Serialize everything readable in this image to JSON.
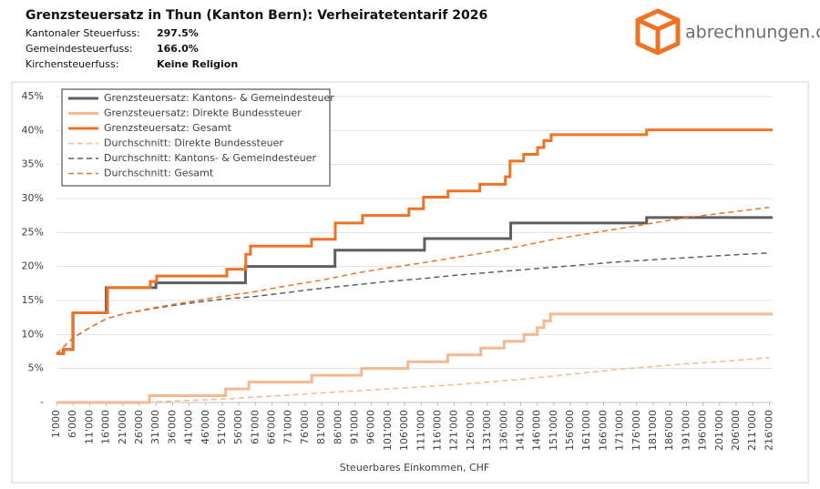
{
  "chart_data": {
    "type": "line",
    "title": "Grenzsteuersatz in Thun (Kanton Bern): Verheiratetentarif 2026",
    "info": [
      {
        "label": "Kantonaler Steuerfuss:",
        "value": "297.5%"
      },
      {
        "label": "Gemeindesteuerfuss:",
        "value": "166.0%"
      },
      {
        "label": "Kirchensteuerfuss:",
        "value": "Keine Religion"
      }
    ],
    "brand": "abrechnungen.ch",
    "x_label": "Steuerbares Einkommen, CHF",
    "xlim": [
      1000,
      217000
    ],
    "ylim": [
      0,
      45
    ],
    "grid": true,
    "legend": "top-left",
    "yticks": [
      {
        "value": 0,
        "label": "-"
      },
      {
        "value": 5,
        "label": "5%"
      },
      {
        "value": 10,
        "label": "10%"
      },
      {
        "value": 15,
        "label": "15%"
      },
      {
        "value": 20,
        "label": "20%"
      },
      {
        "value": 25,
        "label": "25%"
      },
      {
        "value": 30,
        "label": "30%"
      },
      {
        "value": 35,
        "label": "35%"
      },
      {
        "value": 40,
        "label": "40%"
      },
      {
        "value": 45,
        "label": "45%"
      }
    ],
    "xticks": [
      {
        "value": 1000,
        "label": "1'000"
      },
      {
        "value": 6000,
        "label": "6'000"
      },
      {
        "value": 11000,
        "label": "11'000"
      },
      {
        "value": 16000,
        "label": "16'000"
      },
      {
        "value": 21000,
        "label": "21'000"
      },
      {
        "value": 26000,
        "label": "26'000"
      },
      {
        "value": 31000,
        "label": "31'000"
      },
      {
        "value": 36000,
        "label": "36'000"
      },
      {
        "value": 41000,
        "label": "41'000"
      },
      {
        "value": 46000,
        "label": "46'000"
      },
      {
        "value": 51000,
        "label": "51'000"
      },
      {
        "value": 56000,
        "label": "56'000"
      },
      {
        "value": 61000,
        "label": "61'000"
      },
      {
        "value": 66000,
        "label": "66'000"
      },
      {
        "value": 71000,
        "label": "71'000"
      },
      {
        "value": 76000,
        "label": "76'000"
      },
      {
        "value": 81000,
        "label": "81'000"
      },
      {
        "value": 86000,
        "label": "86'000"
      },
      {
        "value": 91000,
        "label": "91'000"
      },
      {
        "value": 96000,
        "label": "96'000"
      },
      {
        "value": 101000,
        "label": "101'000"
      },
      {
        "value": 106000,
        "label": "106'000"
      },
      {
        "value": 111000,
        "label": "111'000"
      },
      {
        "value": 116000,
        "label": "116'000"
      },
      {
        "value": 121000,
        "label": "121'000"
      },
      {
        "value": 126000,
        "label": "126'000"
      },
      {
        "value": 131000,
        "label": "131'000"
      },
      {
        "value": 136000,
        "label": "136'000"
      },
      {
        "value": 141000,
        "label": "141'000"
      },
      {
        "value": 146000,
        "label": "146'000"
      },
      {
        "value": 151000,
        "label": "151'000"
      },
      {
        "value": 156000,
        "label": "156'000"
      },
      {
        "value": 161000,
        "label": "161'000"
      },
      {
        "value": 166000,
        "label": "166'000"
      },
      {
        "value": 171000,
        "label": "171'000"
      },
      {
        "value": 176000,
        "label": "176'000"
      },
      {
        "value": 181000,
        "label": "181'000"
      },
      {
        "value": 186000,
        "label": "186'000"
      },
      {
        "value": 191000,
        "label": "191'000"
      },
      {
        "value": 196000,
        "label": "196'000"
      },
      {
        "value": 201000,
        "label": "201'000"
      },
      {
        "value": 206000,
        "label": "206'000"
      },
      {
        "value": 211000,
        "label": "211'000"
      },
      {
        "value": 216000,
        "label": "216'000"
      }
    ],
    "series": [
      {
        "name": "Grenzsteuersatz: Kantons- & Gemeindesteuer",
        "color": "#5f5f5f",
        "dash": false,
        "step": true,
        "x": [
          1000,
          3000,
          6000,
          16000,
          31000,
          58000,
          85000,
          112000,
          138000,
          179000,
          217000
        ],
        "values": [
          7.2,
          7.8,
          13.2,
          16.9,
          17.6,
          20.0,
          22.4,
          24.1,
          26.4,
          27.2,
          27.2
        ]
      },
      {
        "name": "Grenzsteuersatz: Direkte Bundessteuer",
        "color": "#f7b890",
        "dash": false,
        "step": true,
        "x": [
          1000,
          29000,
          52000,
          59000,
          78000,
          93000,
          107000,
          119000,
          129000,
          136000,
          142000,
          146000,
          148000,
          150000,
          217000
        ],
        "values": [
          0,
          1,
          2,
          3,
          4,
          5,
          6,
          7,
          8,
          9,
          10,
          11,
          12,
          13,
          13
        ]
      },
      {
        "name": "Grenzsteuersatz: Gesamt",
        "color": "#ee7325",
        "dash": false,
        "step": true,
        "x": [
          1000,
          3200,
          5900,
          16400,
          29300,
          31200,
          52400,
          58100,
          59500,
          77900,
          85100,
          93300,
          107300,
          111700,
          119100,
          128700,
          136400,
          137800,
          141900,
          146100,
          148000,
          150200,
          179000,
          217000
        ],
        "values": [
          7.2,
          7.8,
          13.2,
          16.9,
          17.8,
          18.6,
          19.6,
          21.8,
          23.0,
          24.0,
          26.4,
          27.5,
          28.5,
          30.2,
          31.1,
          32.1,
          33.2,
          35.5,
          36.5,
          37.5,
          38.5,
          39.4,
          40.1,
          40.1
        ]
      },
      {
        "name": "Durchschnitt: Direkte Bundessteuer",
        "color": "#f7b890",
        "dash": true,
        "step": false,
        "x": [
          1000,
          29000,
          31000,
          41000,
          51000,
          61000,
          71000,
          81000,
          91000,
          101000,
          111000,
          121000,
          131000,
          141000,
          151000,
          161000,
          171000,
          181000,
          191000,
          201000,
          216000
        ],
        "values": [
          0,
          0,
          0.1,
          0.3,
          0.5,
          0.8,
          1.1,
          1.4,
          1.7,
          2.0,
          2.3,
          2.6,
          3.0,
          3.4,
          3.9,
          4.4,
          4.9,
          5.3,
          5.7,
          6.0,
          6.6
        ]
      },
      {
        "name": "Durchschnitt: Kantons- & Gemeindesteuer",
        "color": "#5f5f5f",
        "dash": true,
        "step": false,
        "x": [
          1000,
          6000,
          11000,
          16000,
          21000,
          31000,
          41000,
          51000,
          61000,
          71000,
          81000,
          91000,
          101000,
          111000,
          121000,
          131000,
          141000,
          151000,
          161000,
          171000,
          181000,
          191000,
          201000,
          216000
        ],
        "values": [
          7.2,
          9.5,
          11.0,
          12.3,
          13.0,
          13.9,
          14.6,
          15.2,
          15.6,
          16.2,
          16.8,
          17.3,
          17.8,
          18.2,
          18.7,
          19.1,
          19.5,
          19.9,
          20.3,
          20.7,
          21.0,
          21.3,
          21.6,
          22.0
        ]
      },
      {
        "name": "Durchschnitt: Gesamt",
        "color": "#ee7325",
        "dash": true,
        "step": false,
        "x": [
          1000,
          6000,
          11000,
          16000,
          21000,
          31000,
          41000,
          51000,
          61000,
          71000,
          81000,
          91000,
          101000,
          111000,
          121000,
          131000,
          141000,
          151000,
          161000,
          171000,
          181000,
          191000,
          201000,
          216000
        ],
        "values": [
          7.2,
          9.5,
          11.0,
          12.3,
          13.0,
          14.0,
          14.8,
          15.6,
          16.3,
          17.2,
          18.0,
          19.0,
          19.8,
          20.5,
          21.3,
          22.1,
          23.0,
          24.0,
          24.8,
          25.6,
          26.4,
          27.2,
          27.8,
          28.7
        ]
      }
    ]
  }
}
